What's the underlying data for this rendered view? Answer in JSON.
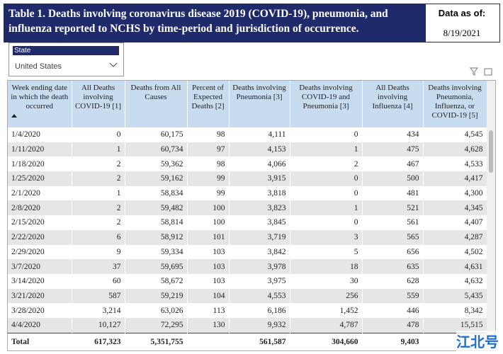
{
  "header": {
    "title": "Table 1. Deaths involving coronavirus disease 2019 (COVID-19), pneumonia, and influenza reported to NCHS by time-period and jurisdiction of occurrence.",
    "data_as_of_label": "Data as of:",
    "data_as_of_date": "8/19/2021"
  },
  "filter": {
    "label": "State",
    "value": "United States"
  },
  "table": {
    "columns": [
      "Week ending date in which the death occurred",
      "All Deaths involving COVID-19 [1]",
      "Deaths from All Causes",
      "Percent of Expected Deaths [2]",
      "Deaths involving Pneumonia [3]",
      "Deaths involving COVID-19 and Pneumonia [3]",
      "All Deaths involving Influenza [4]",
      "Deaths involving Pneumonia, Influenza, or COVID-19 [5]"
    ],
    "rows": [
      [
        "1/4/2020",
        "0",
        "60,175",
        "98",
        "4,111",
        "0",
        "434",
        "4,545"
      ],
      [
        "1/11/2020",
        "1",
        "60,734",
        "97",
        "4,153",
        "1",
        "475",
        "4,628"
      ],
      [
        "1/18/2020",
        "2",
        "59,362",
        "98",
        "4,066",
        "2",
        "467",
        "4,533"
      ],
      [
        "1/25/2020",
        "2",
        "59,162",
        "99",
        "3,915",
        "0",
        "500",
        "4,417"
      ],
      [
        "2/1/2020",
        "1",
        "58,834",
        "99",
        "3,818",
        "0",
        "481",
        "4,300"
      ],
      [
        "2/8/2020",
        "2",
        "59,482",
        "100",
        "3,823",
        "1",
        "521",
        "4,345"
      ],
      [
        "2/15/2020",
        "2",
        "58,814",
        "100",
        "3,845",
        "0",
        "561",
        "4,407"
      ],
      [
        "2/22/2020",
        "6",
        "58,912",
        "101",
        "3,719",
        "3",
        "565",
        "4,287"
      ],
      [
        "2/29/2020",
        "9",
        "59,334",
        "103",
        "3,842",
        "5",
        "656",
        "4,502"
      ],
      [
        "3/7/2020",
        "37",
        "59,695",
        "103",
        "3,978",
        "18",
        "635",
        "4,631"
      ],
      [
        "3/14/2020",
        "60",
        "58,672",
        "103",
        "3,975",
        "30",
        "628",
        "4,632"
      ],
      [
        "3/21/2020",
        "587",
        "59,219",
        "104",
        "4,553",
        "256",
        "559",
        "5,435"
      ],
      [
        "3/28/2020",
        "3,214",
        "63,026",
        "113",
        "6,186",
        "1,452",
        "446",
        "8,342"
      ],
      [
        "4/4/2020",
        "10,127",
        "72,295",
        "130",
        "9,932",
        "4,787",
        "478",
        "15,515"
      ]
    ],
    "total": [
      "Total",
      "617,323",
      "5,351,755",
      null,
      "561,587",
      "304,660",
      "9,403",
      null
    ]
  },
  "watermark": "江北号"
}
